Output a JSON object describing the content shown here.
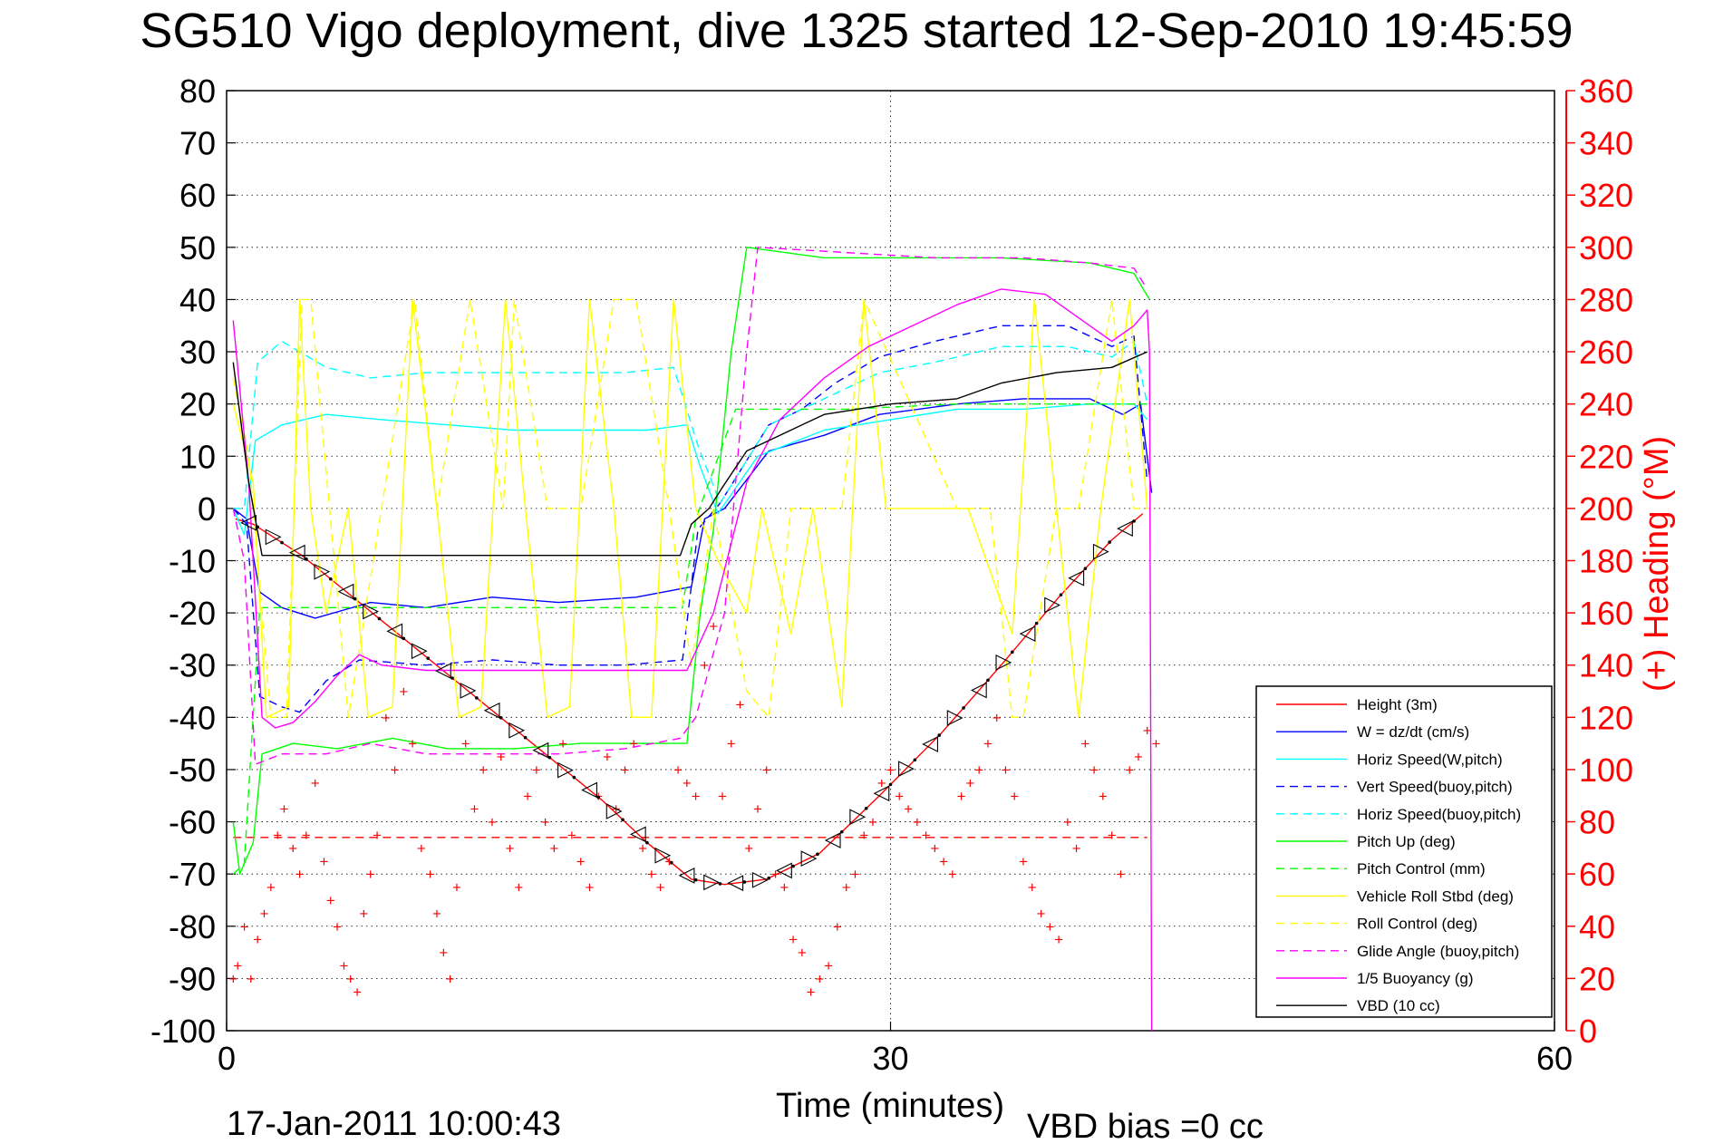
{
  "chart_data": {
    "type": "line",
    "title": "SG510 Vigo deployment, dive 1325 started 12-Sep-2010 19:45:59",
    "xlabel": "Time (minutes)",
    "ylabel_right": "(+) Heading (°M)",
    "xlim": [
      0,
      60
    ],
    "ylim": [
      -100,
      80
    ],
    "ylim_right": [
      0,
      360
    ],
    "x_ticks": [
      0,
      30,
      60
    ],
    "x_tick_labels": [
      "0",
      "30",
      "60"
    ],
    "y_ticks": [
      80,
      70,
      60,
      50,
      40,
      30,
      20,
      10,
      0,
      -10,
      -20,
      -30,
      -40,
      -50,
      -60,
      -70,
      -80,
      -90,
      -100
    ],
    "y_tick_labels": [
      "80",
      "70",
      "60",
      "50",
      "40",
      "30",
      "20",
      "10",
      "0",
      "-10",
      "-20",
      "-30",
      "-40",
      "-50",
      "-60",
      "-70",
      "-80",
      "-90",
      "-100"
    ],
    "y2_ticks": [
      360,
      340,
      320,
      300,
      280,
      260,
      240,
      220,
      200,
      180,
      160,
      140,
      120,
      100,
      80,
      60,
      40,
      20,
      0
    ],
    "y2_tick_labels": [
      "360",
      "340",
      "320",
      "300",
      "280",
      "260",
      "240",
      "220",
      "200",
      "180",
      "160",
      "140",
      "120",
      "100",
      "80",
      "60",
      "40",
      "20",
      "0"
    ],
    "grid": true,
    "legend_position": "bottom-right",
    "footer_date": "17-Jan-2011 10:00:43",
    "footer_vbd": "VBD bias =0 cc",
    "colors": {
      "red": "#ff0000",
      "blue": "#0000ff",
      "cyan": "#00ffff",
      "green": "#00ff00",
      "yellow": "#ffff00",
      "magenta": "#ff00ff",
      "black": "#000000"
    },
    "series": [
      {
        "name": "Height (3m)",
        "color": "#ff0000",
        "dash": false,
        "axis": "left",
        "x": [
          0.4,
          1.2,
          3.4,
          6.0,
          8.9,
          11.8,
          14.4,
          17.0,
          19.0,
          21.0,
          22.5,
          24.4,
          26.8,
          29.5,
          32.3,
          35.0,
          37.6,
          40.0,
          41.4
        ],
        "y": [
          -2,
          -3,
          -9,
          -18,
          -28,
          -38,
          -47,
          -56,
          -64,
          -71,
          -72,
          -71,
          -66,
          -55,
          -43,
          -30,
          -17,
          -6,
          -1
        ]
      },
      {
        "name": "W = dz/dt (cm/s)",
        "color": "#0000ff",
        "dash": false,
        "axis": "left",
        "x": [
          0.3,
          0.9,
          1.5,
          2.5,
          4.0,
          6.5,
          9.0,
          12,
          15,
          18.5,
          21.0,
          21.6,
          22.5,
          24.5,
          27.0,
          29.5,
          33.0,
          36.0,
          39.0,
          40.5,
          41.3,
          41.8
        ],
        "y": [
          0,
          -2,
          -16,
          -19,
          -21,
          -18,
          -19,
          -17,
          -18,
          -17,
          -15,
          -2,
          0,
          11,
          14,
          18,
          20,
          21,
          21,
          18,
          20,
          3
        ]
      },
      {
        "name": "Horiz Speed(W,pitch)",
        "color": "#00ffff",
        "dash": false,
        "axis": "left",
        "x": [
          0.3,
          0.8,
          1.3,
          2.5,
          4.5,
          7.0,
          10,
          13,
          16,
          19,
          20.8,
          21.4,
          22.2,
          24.0,
          27.0,
          30.0,
          33.0,
          36.0,
          39.0,
          41.0,
          41.6
        ],
        "y": [
          0,
          -5,
          13,
          16,
          18,
          17,
          16,
          15,
          15,
          15,
          16,
          8,
          -1,
          10,
          15,
          17,
          19,
          19,
          20,
          20,
          17
        ]
      },
      {
        "name": "Vert Speed(buoy,pitch)",
        "color": "#0000ff",
        "dash": true,
        "axis": "left",
        "x": [
          0.3,
          0.9,
          1.5,
          2.5,
          3.3,
          4.5,
          6.0,
          9.0,
          12,
          15,
          18,
          20.6,
          21.3,
          22.3,
          24.5,
          26.0,
          27.5,
          29.5,
          32.0,
          35.0,
          38.0,
          40.0,
          41.0,
          41.6
        ],
        "y": [
          0,
          -3,
          -36,
          -38,
          -39,
          -33,
          -29,
          -30,
          -29,
          -30,
          -30,
          -29,
          -4,
          1,
          16,
          19,
          24,
          29,
          32,
          35,
          35,
          31,
          33,
          5
        ]
      },
      {
        "name": "Horiz Speed(buoy,pitch)",
        "color": "#00ffff",
        "dash": true,
        "axis": "left",
        "x": [
          0.3,
          0.8,
          1.4,
          2.5,
          4.5,
          6.5,
          9.0,
          12,
          15,
          18,
          20.2,
          21.3,
          22.3,
          24.5,
          27.0,
          29.5,
          32.0,
          35.0,
          38.0,
          40.0,
          41.0,
          41.6
        ],
        "y": [
          0,
          0,
          28,
          32,
          27,
          25,
          26,
          26,
          26,
          26,
          27,
          12,
          1,
          16,
          21,
          26,
          28,
          31,
          31,
          29,
          32,
          20
        ]
      },
      {
        "name": "Pitch Up (deg)",
        "color": "#00ff00",
        "dash": false,
        "axis": "left",
        "x": [
          0.3,
          0.6,
          1.2,
          1.6,
          3.0,
          5.0,
          7.5,
          10,
          13,
          16,
          19,
          20.8,
          21.4,
          22.0,
          22.8,
          23.5,
          27,
          31,
          35,
          39,
          41.0,
          41.7
        ],
        "y": [
          -60,
          -70,
          -64,
          -47,
          -45,
          -46,
          -44,
          -46,
          -46,
          -45,
          -45,
          -45,
          -20,
          -4,
          30,
          50,
          48,
          48,
          48,
          47,
          45,
          40
        ]
      },
      {
        "name": "Pitch Control (mm)",
        "color": "#00ff00",
        "dash": true,
        "axis": "left",
        "x": [
          0.3,
          0.8,
          1.5,
          3,
          6,
          10,
          14,
          18,
          20.6,
          21.2,
          23.0,
          24.0,
          28,
          33,
          38,
          41.0,
          41.6
        ],
        "y": [
          -70,
          -68,
          -19,
          -19,
          -19,
          -19,
          -19,
          -19,
          -19,
          -2,
          19,
          19,
          19,
          20,
          20,
          20,
          20
        ]
      },
      {
        "name": "Vehicle Roll Stbd (deg)",
        "color": "#ffff00",
        "dash": false,
        "axis": "left",
        "x": [
          0.3,
          1.2,
          1.8,
          2.8,
          3.3,
          3.8,
          4.5,
          5.5,
          6.4,
          7.5,
          8.4,
          9.5,
          10.5,
          11.5,
          12.6,
          13.5,
          14.5,
          15.5,
          16.4,
          17.5,
          18.3,
          19.2,
          20.2,
          21.2,
          22.2,
          23.5,
          24.2,
          25.5,
          26.5,
          27.8,
          28.8,
          29.8,
          31.0,
          32.5,
          33.5,
          35.5,
          36.5,
          37.5,
          38.5,
          39.5,
          40.8,
          41.6
        ],
        "y": [
          20,
          5,
          -40,
          -38,
          40,
          0,
          -20,
          0,
          -40,
          -38,
          40,
          0,
          -40,
          -38,
          40,
          0,
          -40,
          -38,
          40,
          0,
          -40,
          -40,
          40,
          0,
          -10,
          -20,
          0,
          -24,
          0,
          -38,
          40,
          0,
          0,
          0,
          0,
          -24,
          40,
          0,
          -40,
          0,
          40,
          0
        ]
      },
      {
        "name": "Roll Control (deg)",
        "color": "#ffff00",
        "dash": true,
        "axis": "left",
        "x": [
          0.3,
          1.0,
          2.0,
          2.7,
          3.4,
          3.8,
          5.5,
          7.0,
          8.5,
          9.5,
          11.0,
          12.5,
          13.0,
          14.5,
          16.0,
          17.5,
          18.5,
          20.0,
          21.0,
          22.0,
          23.5,
          24.5,
          25.5,
          26.5,
          27.8,
          28.8,
          33.0,
          34.5,
          35.5,
          36.0,
          37.5,
          38.5,
          40.0,
          41.0,
          41.6
        ],
        "y": [
          25,
          10,
          -40,
          -40,
          40,
          40,
          -40,
          0,
          40,
          0,
          40,
          0,
          40,
          0,
          0,
          40,
          40,
          0,
          -30,
          0,
          -35,
          -40,
          0,
          0,
          0,
          40,
          0,
          0,
          -40,
          -40,
          0,
          0,
          40,
          0,
          0
        ]
      },
      {
        "name": "Glide Angle (buoy,pitch)",
        "color": "#ff00ff",
        "dash": true,
        "axis": "left",
        "x": [
          0.3,
          0.8,
          1.3,
          2.5,
          4.5,
          6.5,
          9.0,
          12,
          15,
          18,
          20.5,
          21.2,
          22.5,
          23.5,
          24.0,
          28,
          32,
          36,
          39,
          41.0,
          41.6
        ],
        "y": [
          0,
          -10,
          -49,
          -47,
          -47,
          -45,
          -47,
          -47,
          -47,
          -46,
          -44,
          -40,
          -20,
          30,
          50,
          49,
          48,
          48,
          47,
          46,
          42
        ]
      },
      {
        "name": "1/5 Buoyancy (g)",
        "color": "#ff00ff",
        "dash": false,
        "axis": "left",
        "x": [
          0.3,
          1.0,
          1.6,
          2.2,
          3.0,
          4.0,
          5.0,
          6.0,
          7.0,
          9.0,
          12,
          15,
          18,
          20.8,
          22.0,
          23.5,
          25.0,
          27.0,
          29.0,
          31.0,
          33.0,
          35.0,
          37.0,
          39.0,
          40.0,
          41.0,
          41.6,
          41.7,
          41.8
        ],
        "y": [
          36,
          5,
          -40,
          -42,
          -41,
          -37,
          -32,
          -28,
          -30,
          -31,
          -31,
          -31,
          -31,
          -31,
          -20,
          5,
          17,
          25,
          31,
          35,
          39,
          42,
          41,
          35,
          32,
          35,
          38,
          30,
          -100
        ]
      },
      {
        "name": "VBD (10 cc)",
        "color": "#000000",
        "dash": false,
        "axis": "left",
        "x": [
          0.3,
          1.0,
          1.6,
          5,
          10,
          15,
          20.5,
          21.0,
          21.8,
          22.4,
          23.5,
          25.0,
          27.0,
          30.0,
          33.0,
          35.0,
          37.5,
          40.0,
          41.6
        ],
        "y": [
          28,
          5,
          -9,
          -9,
          -9,
          -9,
          -9,
          -3,
          0,
          4,
          11,
          14,
          18,
          20,
          21,
          24,
          26,
          27,
          30
        ]
      }
    ],
    "ref_line": {
      "color": "#ff0000",
      "dash": true,
      "axis": "left",
      "x": [
        0.3,
        41.6
      ],
      "y": [
        -63,
        -63
      ]
    },
    "heading_points": {
      "name": "Heading (deg)",
      "color": "#ff0000",
      "marker": "+",
      "axis": "right",
      "x": [
        0.3,
        0.5,
        0.8,
        1.1,
        1.4,
        1.7,
        2.0,
        2.3,
        2.6,
        3.0,
        3.3,
        3.6,
        4.0,
        4.4,
        4.7,
        5.0,
        5.3,
        5.6,
        5.9,
        6.2,
        6.5,
        6.8,
        7.2,
        7.6,
        8.0,
        8.4,
        8.8,
        9.2,
        9.5,
        9.8,
        10.1,
        10.4,
        10.8,
        11.2,
        11.6,
        12.0,
        12.4,
        12.8,
        13.2,
        13.6,
        14.0,
        14.4,
        14.8,
        15.2,
        15.6,
        16.0,
        16.4,
        16.8,
        17.2,
        17.6,
        18.0,
        18.4,
        18.8,
        19.2,
        19.6,
        20.0,
        20.4,
        20.8,
        21.2,
        21.6,
        22.0,
        22.4,
        22.8,
        23.2,
        23.6,
        24.0,
        24.4,
        24.8,
        25.2,
        25.6,
        26.0,
        26.4,
        26.8,
        27.2,
        27.6,
        28.0,
        28.4,
        28.8,
        29.2,
        29.6,
        30.0,
        30.4,
        30.8,
        31.2,
        31.6,
        32.0,
        32.4,
        32.8,
        33.2,
        33.6,
        34.0,
        34.4,
        34.8,
        35.2,
        35.6,
        36.0,
        36.4,
        36.8,
        37.2,
        37.6,
        38.0,
        38.4,
        38.8,
        39.2,
        39.6,
        40.0,
        40.4,
        40.8,
        41.2,
        41.6,
        42.0
      ],
      "y": [
        20,
        25,
        40,
        20,
        35,
        45,
        55,
        75,
        85,
        70,
        60,
        75,
        95,
        65,
        50,
        40,
        25,
        20,
        15,
        45,
        60,
        75,
        120,
        100,
        130,
        110,
        70,
        60,
        45,
        30,
        20,
        55,
        110,
        85,
        100,
        80,
        105,
        70,
        55,
        90,
        100,
        80,
        70,
        110,
        75,
        65,
        55,
        90,
        105,
        85,
        100,
        110,
        70,
        60,
        55,
        65,
        100,
        95,
        90,
        140,
        155,
        90,
        110,
        125,
        70,
        85,
        100,
        60,
        55,
        35,
        30,
        15,
        20,
        25,
        40,
        55,
        60,
        75,
        80,
        95,
        100,
        90,
        85,
        80,
        75,
        70,
        65,
        60,
        90,
        95,
        100,
        110,
        120,
        100,
        90,
        65,
        55,
        45,
        40,
        35,
        80,
        70,
        110,
        100,
        90,
        75,
        60,
        100,
        105,
        115,
        110
      ]
    }
  }
}
